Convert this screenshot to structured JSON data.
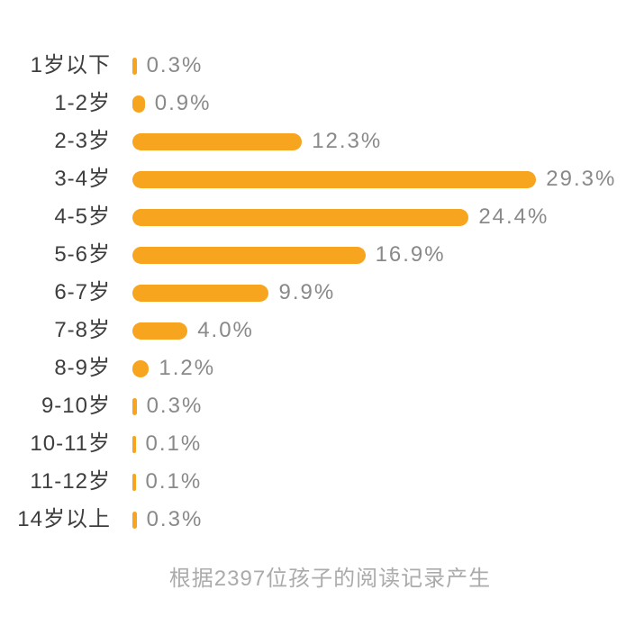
{
  "page": {
    "background": "#ffffff"
  },
  "chart_data": {
    "type": "bar",
    "orientation": "horizontal",
    "title": "",
    "xlabel": "",
    "ylabel": "",
    "categories": [
      "1岁以下",
      "1-2岁",
      "2-3岁",
      "3-4岁",
      "4-5岁",
      "5-6岁",
      "6-7岁",
      "7-8岁",
      "8-9岁",
      "9-10岁",
      "10-11岁",
      "11-12岁",
      "14岁以上"
    ],
    "values": [
      0.3,
      0.9,
      12.3,
      29.3,
      24.4,
      16.9,
      9.9,
      4.0,
      1.2,
      0.3,
      0.1,
      0.1,
      0.3
    ],
    "value_labels": [
      "0.3%",
      "0.9%",
      "12.3%",
      "29.3%",
      "24.4%",
      "16.9%",
      "9.9%",
      "4.0%",
      "1.2%",
      "0.3%",
      "0.1%",
      "0.1%",
      "0.3%"
    ],
    "xlim": [
      0,
      30
    ],
    "grid": false,
    "legend": false,
    "bar_color": "#f7a41f",
    "label_color": "#3e3e3e",
    "value_color": "#898989"
  },
  "footer": {
    "text": "根据2397位孩子的阅读记录产生",
    "color": "#ababab"
  }
}
